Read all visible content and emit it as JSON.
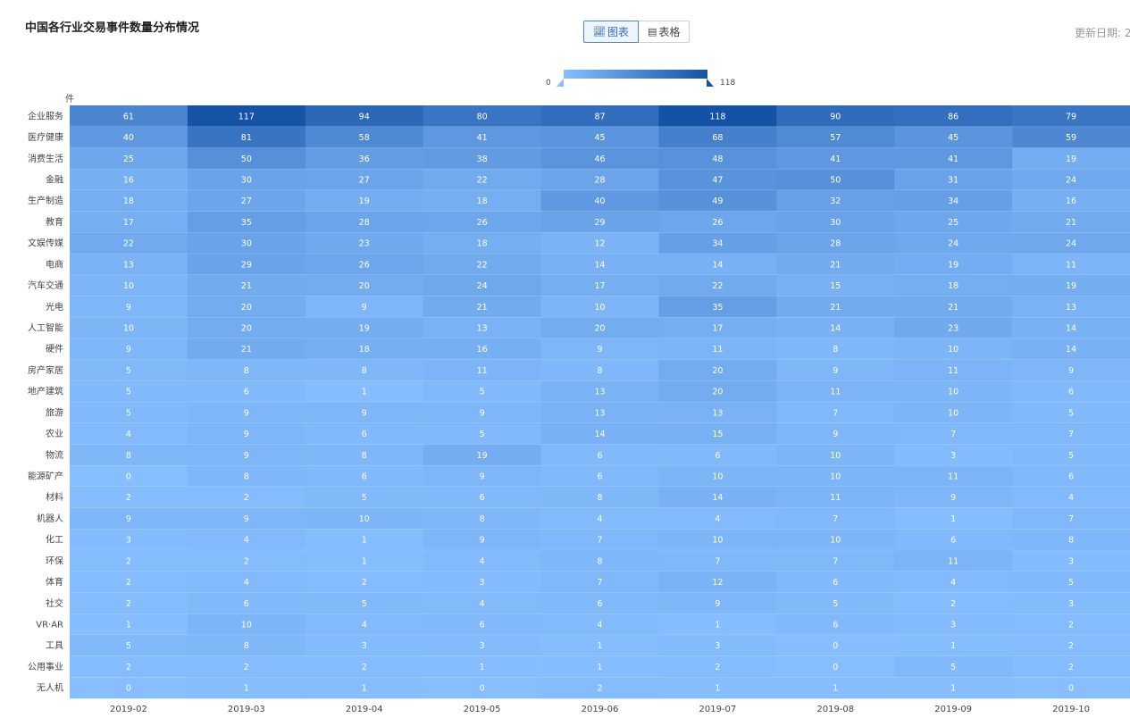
{
  "header": {
    "title": "中国各行业交易事件数量分布情况",
    "update_label": "更新日期: 2"
  },
  "view_toggle": {
    "chart_icon": "chart-icon",
    "chart_label": "图表",
    "table_icon": "table-icon",
    "table_label": "表格",
    "active": "chart"
  },
  "legend": {
    "min": "0",
    "max": "118"
  },
  "colors": {
    "low": "#87beff",
    "high": "#1452a6",
    "cell_text": "#ffffff",
    "accent": "#2f6dc2"
  },
  "chart_data": {
    "type": "heatmap",
    "title": "中国各行业交易事件数量分布情况",
    "ylabel": "件",
    "x": [
      "2019-02",
      "2019-03",
      "2019-04",
      "2019-05",
      "2019-06",
      "2019-07",
      "2019-08",
      "2019-09",
      "2019-10"
    ],
    "y": [
      "企业服务",
      "医疗健康",
      "消费生活",
      "金融",
      "生产制造",
      "教育",
      "文娱传媒",
      "电商",
      "汽车交通",
      "光电",
      "人工智能",
      "硬件",
      "房产家居",
      "地产建筑",
      "旅游",
      "农业",
      "物流",
      "能源矿产",
      "材料",
      "机器人",
      "化工",
      "环保",
      "体育",
      "社交",
      "VR·AR",
      "工具",
      "公用事业",
      "无人机"
    ],
    "values": [
      [
        61,
        117,
        94,
        80,
        87,
        118,
        90,
        86,
        79
      ],
      [
        40,
        81,
        58,
        41,
        45,
        68,
        57,
        45,
        59
      ],
      [
        25,
        50,
        36,
        38,
        46,
        48,
        41,
        41,
        19
      ],
      [
        16,
        30,
        27,
        22,
        28,
        47,
        50,
        31,
        24
      ],
      [
        18,
        27,
        19,
        18,
        40,
        49,
        32,
        34,
        16
      ],
      [
        17,
        35,
        28,
        26,
        29,
        26,
        30,
        25,
        21
      ],
      [
        22,
        30,
        23,
        18,
        12,
        34,
        28,
        24,
        24
      ],
      [
        13,
        29,
        26,
        22,
        14,
        14,
        21,
        19,
        11
      ],
      [
        10,
        21,
        20,
        24,
        17,
        22,
        15,
        18,
        19
      ],
      [
        9,
        20,
        9,
        21,
        10,
        35,
        21,
        21,
        13
      ],
      [
        10,
        20,
        19,
        13,
        20,
        17,
        14,
        23,
        14
      ],
      [
        9,
        21,
        18,
        16,
        9,
        11,
        8,
        10,
        14
      ],
      [
        5,
        8,
        8,
        11,
        8,
        20,
        9,
        11,
        9
      ],
      [
        5,
        6,
        1,
        5,
        13,
        20,
        11,
        10,
        6
      ],
      [
        5,
        9,
        9,
        9,
        13,
        13,
        7,
        10,
        5
      ],
      [
        4,
        9,
        6,
        5,
        14,
        15,
        9,
        7,
        7
      ],
      [
        8,
        9,
        8,
        19,
        6,
        6,
        10,
        3,
        5
      ],
      [
        0,
        8,
        6,
        9,
        6,
        10,
        10,
        11,
        6
      ],
      [
        2,
        2,
        5,
        6,
        8,
        14,
        11,
        9,
        4
      ],
      [
        9,
        9,
        10,
        8,
        4,
        4,
        7,
        1,
        7
      ],
      [
        3,
        4,
        1,
        9,
        7,
        10,
        10,
        6,
        8
      ],
      [
        2,
        2,
        1,
        4,
        8,
        7,
        7,
        11,
        3
      ],
      [
        2,
        4,
        2,
        3,
        7,
        12,
        6,
        4,
        5
      ],
      [
        2,
        6,
        5,
        4,
        6,
        9,
        5,
        2,
        3
      ],
      [
        1,
        10,
        4,
        6,
        4,
        1,
        6,
        3,
        2
      ],
      [
        5,
        8,
        3,
        3,
        1,
        3,
        0,
        1,
        2
      ],
      [
        2,
        2,
        2,
        1,
        1,
        2,
        0,
        5,
        2
      ],
      [
        0,
        1,
        1,
        0,
        2,
        1,
        1,
        1,
        0
      ]
    ],
    "range": [
      0,
      118
    ],
    "grid": false,
    "legend": "top-center"
  }
}
